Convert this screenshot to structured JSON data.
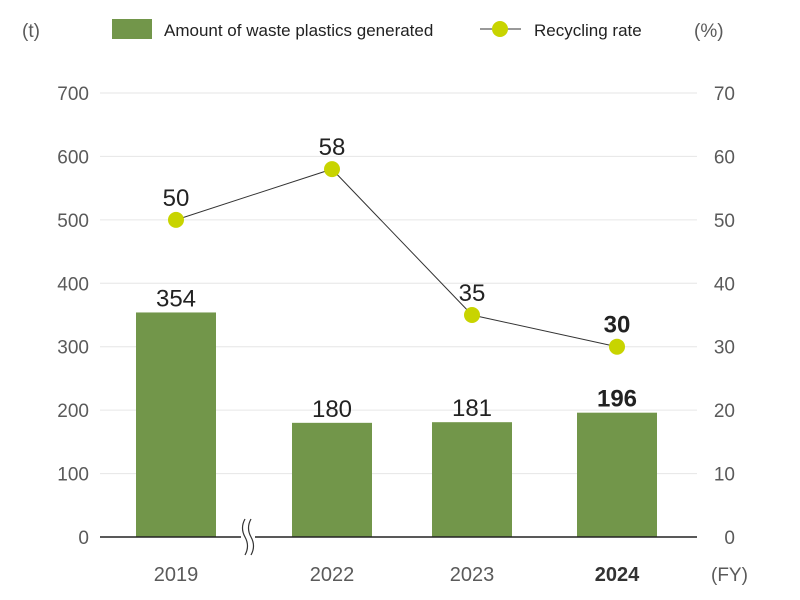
{
  "chart_data": {
    "type": "bar+line",
    "categories": [
      "2019",
      "2022",
      "2023",
      "2024"
    ],
    "highlight_category": "2024",
    "x_unit": "(FY)",
    "axis_break_between": [
      "2019",
      "2022"
    ],
    "series": [
      {
        "name": "Amount of waste plastics generated",
        "type": "bar",
        "axis": "left",
        "color": "#72964a",
        "values": [
          354,
          180,
          181,
          196
        ]
      },
      {
        "name": "Recycling rate",
        "type": "line",
        "axis": "right",
        "color": "#c8d400",
        "line_color": "#333333",
        "values": [
          50,
          58,
          35,
          30
        ]
      }
    ],
    "y_left": {
      "unit": "(t)",
      "min": 0,
      "max": 700,
      "ticks": [
        0,
        100,
        200,
        300,
        400,
        500,
        600,
        700
      ]
    },
    "y_right": {
      "unit": "(%)",
      "min": 0,
      "max": 70,
      "ticks": [
        0,
        10,
        20,
        30,
        40,
        50,
        60,
        70
      ]
    },
    "grid": true,
    "legend_position": "top"
  }
}
